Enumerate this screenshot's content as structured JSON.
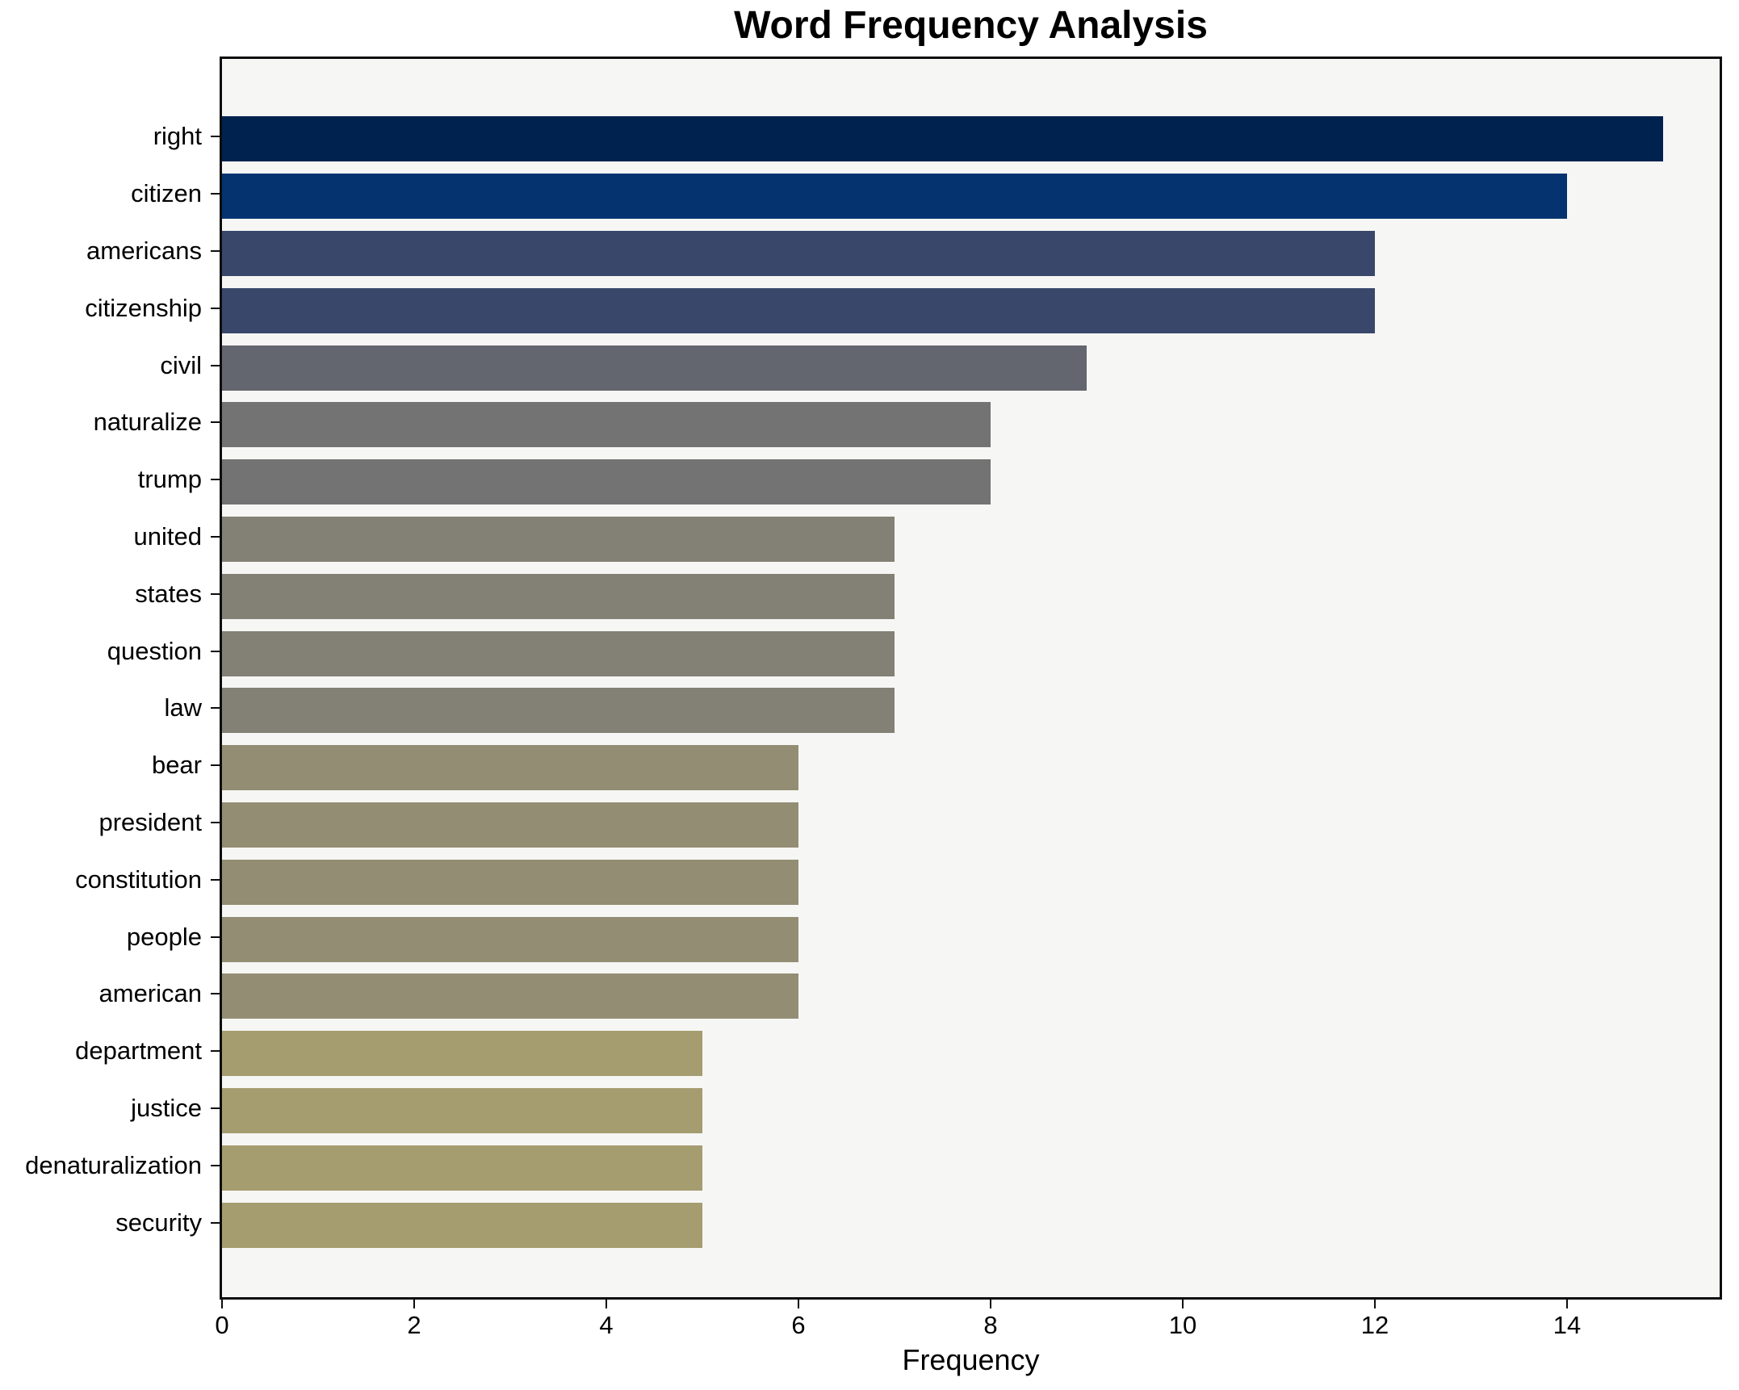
{
  "title": "Word Frequency Analysis",
  "chart_data": {
    "type": "bar",
    "orientation": "horizontal",
    "title": "Word Frequency Analysis",
    "xlabel": "Frequency",
    "ylabel": "",
    "xlim": [
      0,
      15.64
    ],
    "x_ticks": [
      0,
      2,
      4,
      6,
      8,
      10,
      12,
      14
    ],
    "grid": false,
    "legend": "none",
    "plot_background": "#f6f6f4",
    "figure_background": "#ffffff",
    "spine_color": "#0d0d0d",
    "text_color": "#000000",
    "categories": [
      "right",
      "citizen",
      "americans",
      "citizenship",
      "civil",
      "naturalize",
      "trump",
      "united",
      "states",
      "question",
      "law",
      "bear",
      "president",
      "constitution",
      "people",
      "american",
      "department",
      "justice",
      "denaturalization",
      "security"
    ],
    "values": [
      15,
      14,
      12,
      12,
      9,
      8,
      8,
      7,
      7,
      7,
      7,
      6,
      6,
      6,
      6,
      6,
      5,
      5,
      5,
      5
    ],
    "bar_colors": [
      "#00224e",
      "#04336f",
      "#39476b",
      "#39476b",
      "#64666f",
      "#747373",
      "#747373",
      "#838076",
      "#838076",
      "#838076",
      "#838076",
      "#938d74",
      "#938d74",
      "#938d74",
      "#938d74",
      "#938d74",
      "#a59c70",
      "#a59c70",
      "#a59c70",
      "#a59c70"
    ]
  }
}
